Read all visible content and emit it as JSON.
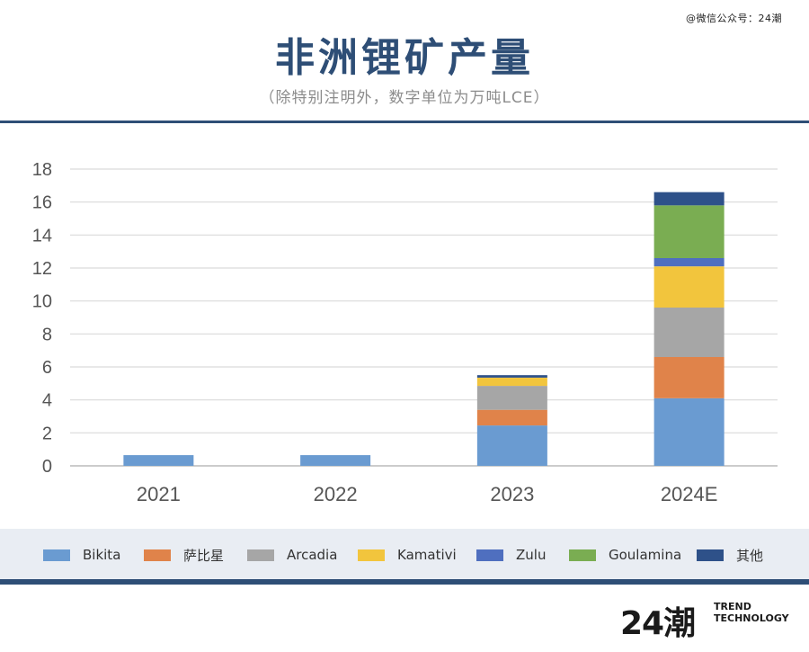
{
  "watermark": "@微信公众号：24潮",
  "chart_data": {
    "type": "bar",
    "stacked": true,
    "title": "非洲锂矿产量",
    "subtitle": "（除特别注明外，数字单位为万吨LCE）",
    "xlabel": "",
    "ylabel": "",
    "ylim": [
      0,
      18
    ],
    "yticks": [
      0,
      2,
      4,
      6,
      8,
      10,
      12,
      14,
      16,
      18
    ],
    "grid": true,
    "legend_position": "bottom",
    "categories": [
      "2021",
      "2022",
      "2023",
      "2024E"
    ],
    "series": [
      {
        "name": "Bikita",
        "color": "#6a9bd1",
        "values": [
          0.65,
          0.65,
          2.45,
          4.1
        ]
      },
      {
        "name": "萨比星",
        "color": "#e0834a",
        "values": [
          0,
          0,
          0.95,
          2.5
        ]
      },
      {
        "name": "Arcadia",
        "color": "#a6a6a6",
        "values": [
          0,
          0,
          1.45,
          3.0
        ]
      },
      {
        "name": "Kamativi",
        "color": "#f2c53d",
        "values": [
          0,
          0,
          0.5,
          2.5
        ]
      },
      {
        "name": "Zulu",
        "color": "#4f6fbf",
        "values": [
          0,
          0,
          0,
          0.5
        ]
      },
      {
        "name": "Goulamina",
        "color": "#7aad52",
        "values": [
          0,
          0,
          0,
          3.2
        ]
      },
      {
        "name": "其他",
        "color": "#2e5189",
        "values": [
          0,
          0,
          0.15,
          0.8
        ]
      }
    ]
  },
  "brand": {
    "mark": "24潮",
    "line1": "TREND",
    "line2": "TECHNOLOGY"
  }
}
